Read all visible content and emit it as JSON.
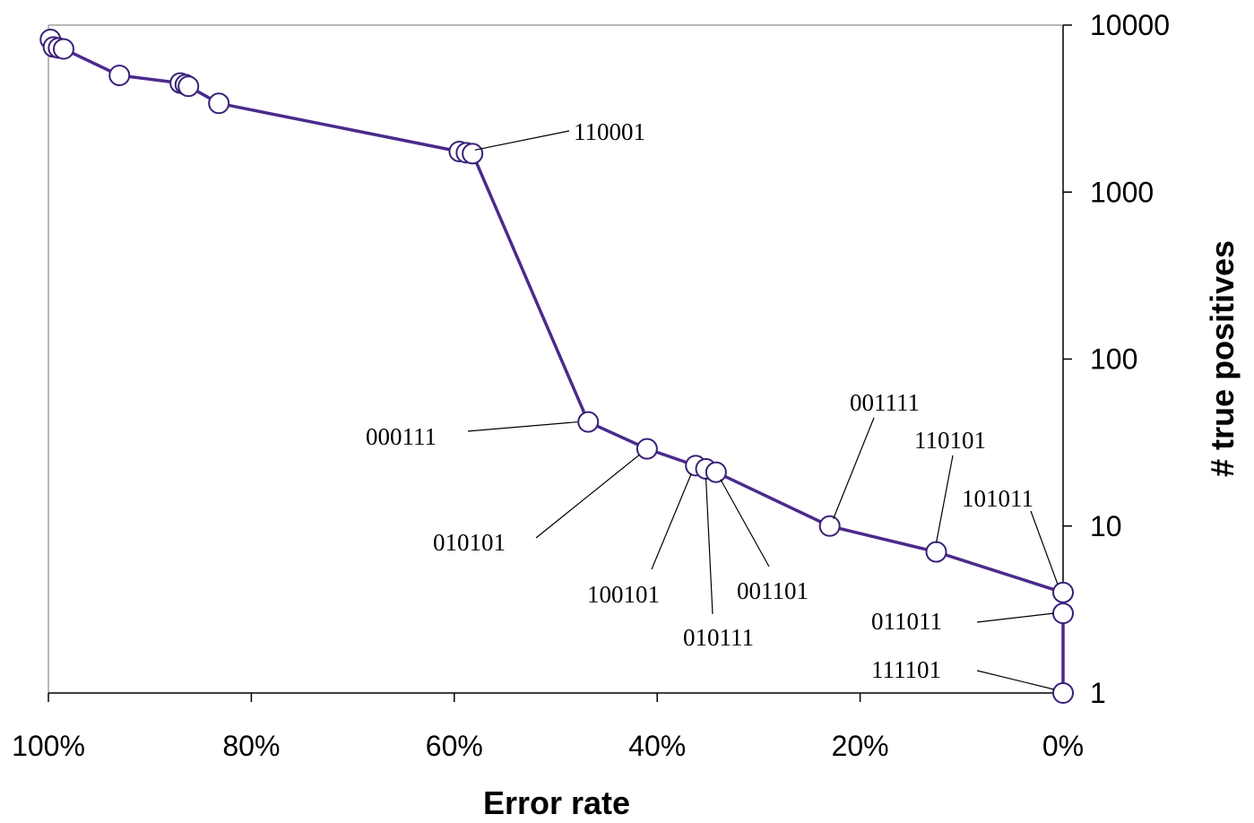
{
  "chart_data": {
    "type": "line",
    "title": "",
    "xlabel": "Error rate",
    "ylabel": "# true positives",
    "x_reversed": true,
    "y_scale": "log",
    "xlim": [
      100,
      0
    ],
    "ylim": [
      1,
      10000
    ],
    "x_ticks": [
      "100%",
      "80%",
      "60%",
      "40%",
      "20%",
      "0%"
    ],
    "y_ticks": [
      "10000",
      "1000",
      "100",
      "10",
      "1"
    ],
    "y_axis_side": "right",
    "grid": false,
    "series": [
      {
        "x": [
          99.8,
          99.5,
          99.0,
          98.5,
          93.0,
          87.0,
          86.5,
          86.2,
          83.2,
          59.5,
          58.8,
          58.2,
          46.8,
          41.0,
          36.2,
          35.2,
          34.2,
          23.0,
          12.5,
          0.0,
          0.0,
          0.0
        ],
        "y": [
          8200,
          7400,
          7300,
          7200,
          5000,
          4500,
          4400,
          4300,
          3400,
          1750,
          1720,
          1700,
          42,
          29,
          23,
          22,
          21,
          10,
          7,
          4,
          3,
          1
        ]
      }
    ],
    "annotations": [
      {
        "label": "110001",
        "x": 58.5,
        "y": 1700
      },
      {
        "label": "000111",
        "x": 46.8,
        "y": 42
      },
      {
        "label": "010101",
        "x": 41.0,
        "y": 29
      },
      {
        "label": "100101",
        "x": 36.2,
        "y": 23
      },
      {
        "label": "010111",
        "x": 35.2,
        "y": 22
      },
      {
        "label": "001101",
        "x": 34.2,
        "y": 21
      },
      {
        "label": "001111",
        "x": 23.0,
        "y": 10
      },
      {
        "label": "110101",
        "x": 12.5,
        "y": 7
      },
      {
        "label": "101011",
        "x": 0.0,
        "y": 4
      },
      {
        "label": "011011",
        "x": 0.0,
        "y": 3
      },
      {
        "label": "111101",
        "x": 0.0,
        "y": 1
      }
    ],
    "colors": {
      "line": "#4b2a8c",
      "marker_edge": "#3a2078",
      "marker_fill": "#ffffff",
      "axis": "#000000",
      "frame": "#a0a0a0"
    }
  }
}
